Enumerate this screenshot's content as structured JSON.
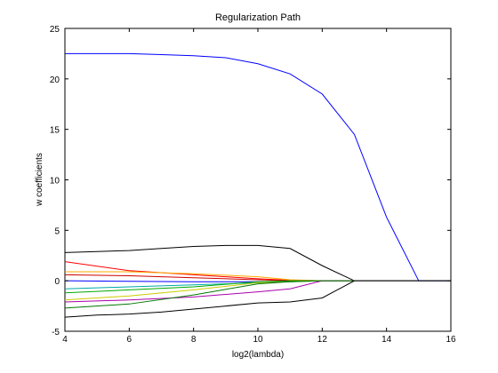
{
  "chart_data": {
    "type": "line",
    "title": "Regularization Path",
    "xlabel": "log2(lambda)",
    "ylabel": "w coefficients",
    "xlim": [
      4,
      16
    ],
    "ylim": [
      -5,
      25
    ],
    "xticks": [
      4,
      6,
      8,
      10,
      12,
      14,
      16
    ],
    "yticks": [
      -5,
      0,
      5,
      10,
      15,
      20,
      25
    ],
    "grid": false,
    "series": [
      {
        "color": "#0000ff",
        "x": [
          4,
          5,
          6,
          7,
          8,
          9,
          10,
          11,
          12,
          13,
          14,
          15,
          16
        ],
        "y": [
          22.5,
          22.5,
          22.5,
          22.4,
          22.3,
          22.1,
          21.5,
          20.5,
          18.5,
          14.5,
          6.3,
          0,
          0
        ]
      },
      {
        "color": "#000000",
        "x": [
          4,
          5,
          6,
          7,
          8,
          9,
          10,
          11,
          12,
          13,
          14,
          15,
          16
        ],
        "y": [
          2.8,
          2.9,
          3.0,
          3.2,
          3.4,
          3.5,
          3.5,
          3.2,
          1.5,
          0,
          0,
          0,
          0
        ]
      },
      {
        "color": "#ff0000",
        "x": [
          4,
          6,
          8,
          10,
          11,
          12,
          13
        ],
        "y": [
          1.9,
          1.0,
          0.6,
          0.2,
          0.05,
          0,
          0
        ]
      },
      {
        "color": "#ffaa00",
        "x": [
          4,
          6,
          8,
          10,
          11,
          12,
          13
        ],
        "y": [
          0.9,
          0.9,
          0.7,
          0.4,
          0.1,
          0,
          0
        ]
      },
      {
        "color": "#cc0000",
        "x": [
          4,
          6,
          8,
          10,
          11,
          12,
          13
        ],
        "y": [
          0.6,
          0.5,
          0.3,
          0.1,
          0.0,
          0,
          0
        ]
      },
      {
        "color": "#00aaaa",
        "x": [
          4,
          6,
          8,
          10,
          11,
          12,
          13
        ],
        "y": [
          -0.8,
          -0.6,
          -0.4,
          -0.2,
          -0.1,
          0,
          0
        ]
      },
      {
        "color": "#0000ff",
        "x": [
          4,
          6,
          8,
          10,
          11,
          12,
          13
        ],
        "y": [
          0.0,
          -0.05,
          -0.1,
          -0.1,
          -0.05,
          0,
          0
        ]
      },
      {
        "color": "#00aa00",
        "x": [
          4,
          6,
          8,
          10,
          11,
          12,
          13
        ],
        "y": [
          -1.2,
          -0.9,
          -0.6,
          -0.1,
          0.0,
          0,
          0
        ]
      },
      {
        "color": "#cccc00",
        "x": [
          4,
          6,
          8,
          10,
          11,
          12,
          13
        ],
        "y": [
          -1.9,
          -1.5,
          -0.9,
          -0.2,
          -0.1,
          0,
          0
        ]
      },
      {
        "color": "#aa00aa",
        "x": [
          4,
          6,
          8,
          10,
          11,
          12,
          13
        ],
        "y": [
          -2.1,
          -1.9,
          -1.6,
          -1.1,
          -0.8,
          0,
          0
        ]
      },
      {
        "color": "#007700",
        "x": [
          4,
          6,
          8,
          10,
          11,
          12,
          13
        ],
        "y": [
          -2.7,
          -2.3,
          -1.4,
          -0.3,
          -0.1,
          0,
          0
        ]
      },
      {
        "color": "#000000",
        "x": [
          4,
          5,
          6,
          7,
          8,
          9,
          10,
          11,
          12,
          13,
          14,
          15,
          16
        ],
        "y": [
          -3.6,
          -3.4,
          -3.3,
          -3.1,
          -2.8,
          -2.5,
          -2.2,
          -2.1,
          -1.7,
          0,
          0,
          0,
          0
        ]
      }
    ]
  }
}
